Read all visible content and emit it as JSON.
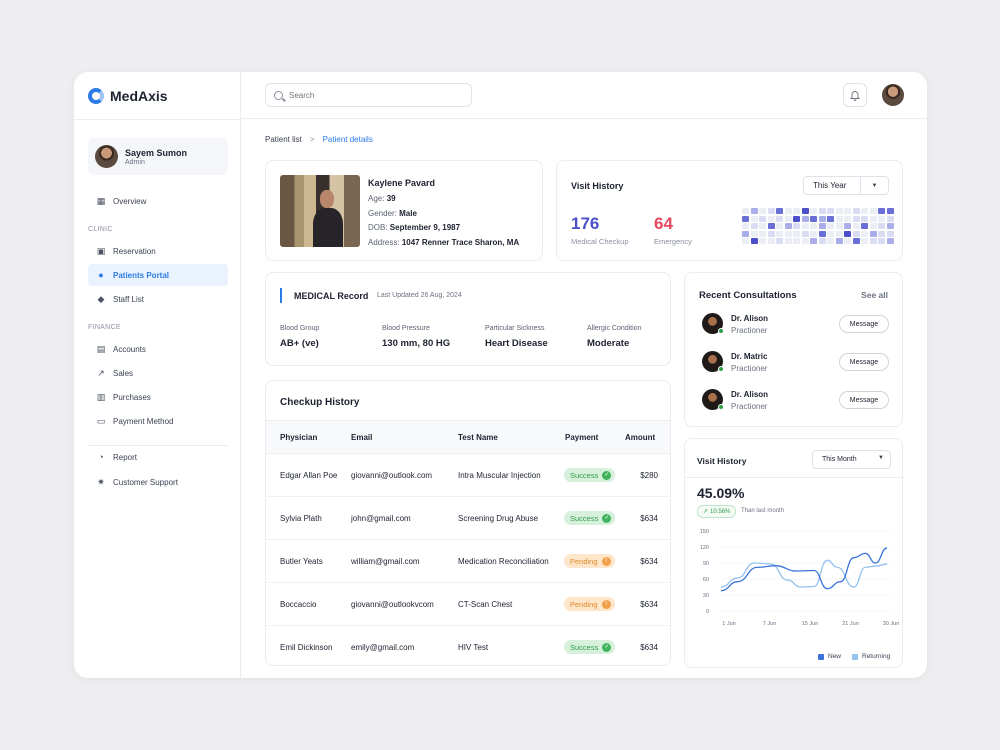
{
  "app": {
    "name": "MedAxis"
  },
  "user": {
    "name": "Sayem Sumon",
    "role": "Admin"
  },
  "search": {
    "placeholder": "Search"
  },
  "nav": {
    "overview": "Overview",
    "clinic_label": "CLINIC",
    "reservation": "Reservation",
    "patients_portal": "Patients Portal",
    "staff_list": "Staff List",
    "finance_label": "FINANCE",
    "accounts": "Accounts",
    "sales": "Sales",
    "purchases": "Purchases",
    "payment_method": "Payment Method",
    "report": "Report",
    "customer_support": "Customer Support"
  },
  "breadcrumb": {
    "parent": "Patient list",
    "separator": ">",
    "current": "Patient details"
  },
  "patient": {
    "name": "Kaylene Pavard",
    "age_label": "Age:",
    "age": "39",
    "gender_label": "Gender:",
    "gender": "Male",
    "dob_label": "DOB:",
    "dob": "September 9, 1987",
    "address_label": "Address:",
    "address": "1047 Renner Trace Sharon, MA"
  },
  "visit_history_top": {
    "title": "Visit History",
    "filter": "This Year",
    "medical_checkup_value": "176",
    "medical_checkup_label": "Medical Checkup",
    "emergency_value": "64",
    "emergency_label": "Emergency",
    "colors": {
      "checkup": "#4b4fc9",
      "emergency": "#e5475f"
    },
    "heatmap": [
      [
        0,
        2,
        0,
        1,
        3,
        0,
        0,
        4,
        0,
        1,
        1,
        0,
        0,
        1,
        0,
        0,
        3,
        3
      ],
      [
        3,
        0,
        1,
        0,
        1,
        0,
        4,
        2,
        3,
        2,
        3,
        0,
        0,
        1,
        1,
        0,
        0,
        1
      ],
      [
        0,
        1,
        0,
        3,
        0,
        2,
        1,
        0,
        0,
        2,
        0,
        0,
        2,
        0,
        3,
        0,
        1,
        2
      ],
      [
        2,
        0,
        0,
        1,
        0,
        0,
        0,
        1,
        0,
        3,
        0,
        0,
        4,
        1,
        0,
        2,
        1,
        1
      ],
      [
        0,
        4,
        0,
        0,
        1,
        0,
        0,
        0,
        2,
        1,
        0,
        2,
        0,
        3,
        0,
        1,
        1,
        2
      ]
    ]
  },
  "medical_record": {
    "title": "MEDICAL Record",
    "updated": "Last Updated 26 Aug, 2024",
    "fields": [
      {
        "label": "Blood Group",
        "value": "AB+ (ve)"
      },
      {
        "label": "Blood Pressure",
        "value": "130 mm, 80 HG"
      },
      {
        "label": "Particular Sickness",
        "value": "Heart Disease"
      },
      {
        "label": "Allergic Condition",
        "value": "Moderate"
      }
    ]
  },
  "checkup_history": {
    "title": "Checkup History",
    "columns": [
      "Physician",
      "Email",
      "Test Name",
      "Payment",
      "Amount"
    ],
    "rows": [
      {
        "physician": "Edgar Allan Poe",
        "email": "giovanni@outlook.com",
        "test": "Intra Muscular Injection",
        "payment": "Success",
        "amount": "$280"
      },
      {
        "physician": "Sylvia Plath",
        "email": "john@gmail.com",
        "test": "Screening Drug Abuse",
        "payment": "Success",
        "amount": "$634"
      },
      {
        "physician": "Butler Yeats",
        "email": "william@gmail.com",
        "test": "Medication Reconciliation",
        "payment": "Pending",
        "amount": "$634"
      },
      {
        "physician": "Boccaccio",
        "email": "giovanni@outlookvcom",
        "test": "CT-Scan Chest",
        "payment": "Pending",
        "amount": "$634"
      },
      {
        "physician": "Emil Dickinson",
        "email": "emily@gmail.com",
        "test": "HIV Test",
        "payment": "Success",
        "amount": "$634"
      }
    ]
  },
  "recent_consultations": {
    "title": "Recent Consultations",
    "see_all": "See all",
    "button_label": "Message",
    "doctors": [
      {
        "name": "Dr. Alison",
        "role": "Practioner"
      },
      {
        "name": "Dr. Matric",
        "role": "Practioner"
      },
      {
        "name": "Dr. Alison",
        "role": "Practioner"
      }
    ]
  },
  "visit_history_chart": {
    "title": "Visit History",
    "filter": "This Month",
    "percent": "45.09%",
    "change": "10.56%",
    "change_note": "Than last month",
    "legend": [
      "New",
      "Returning"
    ],
    "colors": {
      "new": "#3b73d9",
      "returning": "#93c1f0"
    }
  },
  "chart_data": {
    "type": "line",
    "x": [
      "1 Jun",
      "7 Jun",
      "15 Jun",
      "21 Jun",
      "30 Jun"
    ],
    "ylim": [
      0,
      150
    ],
    "yticks": [
      0,
      30,
      60,
      90,
      120,
      150
    ],
    "series": [
      {
        "name": "New",
        "points": [
          [
            0,
            38
          ],
          [
            0.1,
            55
          ],
          [
            0.22,
            82
          ],
          [
            0.33,
            85
          ],
          [
            0.45,
            75
          ],
          [
            0.56,
            76
          ],
          [
            0.64,
            42
          ],
          [
            0.72,
            55
          ],
          [
            0.8,
            100
          ],
          [
            0.87,
            108
          ],
          [
            0.93,
            90
          ],
          [
            1,
            118
          ]
        ]
      },
      {
        "name": "Returning",
        "points": [
          [
            0,
            45
          ],
          [
            0.1,
            62
          ],
          [
            0.2,
            90
          ],
          [
            0.3,
            88
          ],
          [
            0.4,
            58
          ],
          [
            0.48,
            45
          ],
          [
            0.56,
            46
          ],
          [
            0.64,
            95
          ],
          [
            0.7,
            82
          ],
          [
            0.8,
            45
          ],
          [
            0.87,
            82
          ],
          [
            0.93,
            84
          ],
          [
            1,
            88
          ]
        ]
      }
    ]
  }
}
